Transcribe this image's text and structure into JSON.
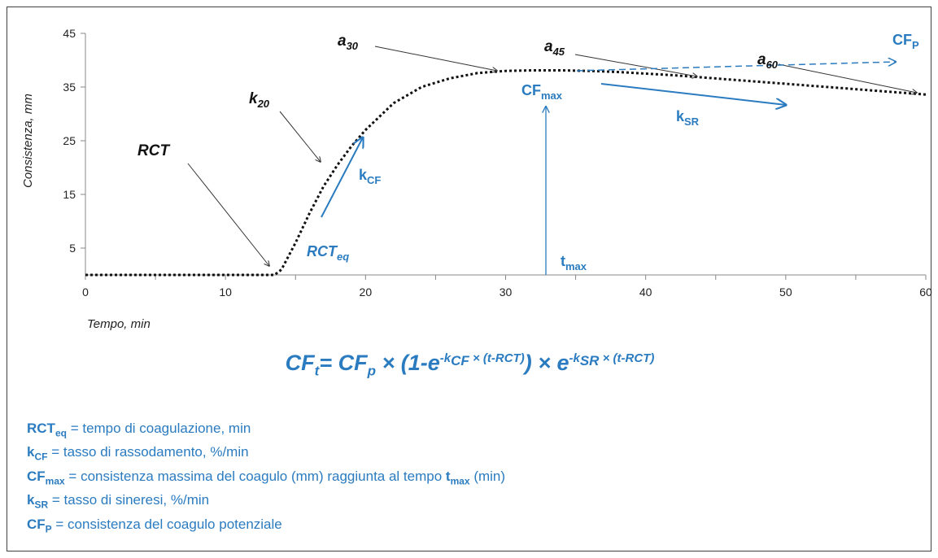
{
  "chart_data": {
    "type": "line",
    "xlabel": "Tempo, min",
    "ylabel": "Consistenza, mm",
    "xlim": [
      0,
      60
    ],
    "ylim": [
      0,
      45
    ],
    "x_ticks": [
      "0",
      "10",
      "20",
      "30",
      "40",
      "50",
      "60"
    ],
    "y_ticks": [
      "5",
      "15",
      "25",
      "35",
      "45"
    ],
    "grid": false,
    "series": [
      {
        "x": [
          0,
          13.5,
          14,
          15,
          16,
          17,
          18,
          19,
          20,
          22,
          24,
          26,
          28,
          30,
          32,
          34,
          36,
          38,
          40,
          42,
          44,
          46,
          48,
          50,
          52,
          54,
          56,
          58,
          60
        ],
        "y": [
          0,
          0,
          1,
          6,
          11.5,
          16.5,
          20.5,
          24,
          27,
          32,
          35,
          36.6,
          37.6,
          38,
          38.1,
          38.1,
          38,
          37.8,
          37.5,
          37.2,
          36.8,
          36.4,
          36,
          35.6,
          35.2,
          34.8,
          34.4,
          34,
          33.6
        ]
      }
    ],
    "labels": {
      "rct": "RCT",
      "k20": "k",
      "k20_sub": "20",
      "a30": "a",
      "a30_sub": "30",
      "a45": "a",
      "a45_sub": "45",
      "a60": "a",
      "a60_sub": "60",
      "cfp": "CF",
      "cfp_sub": "P",
      "cfmax": "CF",
      "cfmax_sub": "max",
      "ksr": "k",
      "ksr_sub": "SR",
      "kcf": "k",
      "kcf_sub": "CF",
      "rcteq": "RCT",
      "rcteq_sub": "eq",
      "tmax": "t",
      "tmax_sub": "max"
    },
    "colors": {
      "curve": "#111111",
      "accent": "#2a7bc0"
    }
  },
  "formula": {
    "lhs": "CF",
    "lhs_sub": "t",
    "eq": "= ",
    "cfp": "CF",
    "cfp_sub": "p",
    "times1": " × (1-e",
    "exp1": "-k",
    "exp1_sub": "CF",
    "exp1_tail": " × (t-RCT)",
    "close": ") × e",
    "exp2": "-k",
    "exp2_sub": "SR",
    "exp2_tail": " × (t-RCT)"
  },
  "legend": [
    {
      "sym": "RCT",
      "sub": "eq",
      "text": " = tempo di coagulazione, min"
    },
    {
      "sym": "k",
      "sub": "CF",
      "text": " = tasso di rassodamento, %/min"
    },
    {
      "sym": "CF",
      "sub": "max",
      "text": " = consistenza massima del coagulo (mm) raggiunta al tempo ",
      "bold": "t",
      "bold_sub": "max",
      "tail": " (min)"
    },
    {
      "sym": "k",
      "sub": "SR",
      "text": " = tasso di sineresi, %/min"
    },
    {
      "sym": "CF",
      "sub": "P",
      "text": " = consistenza del coagulo potenziale"
    }
  ]
}
